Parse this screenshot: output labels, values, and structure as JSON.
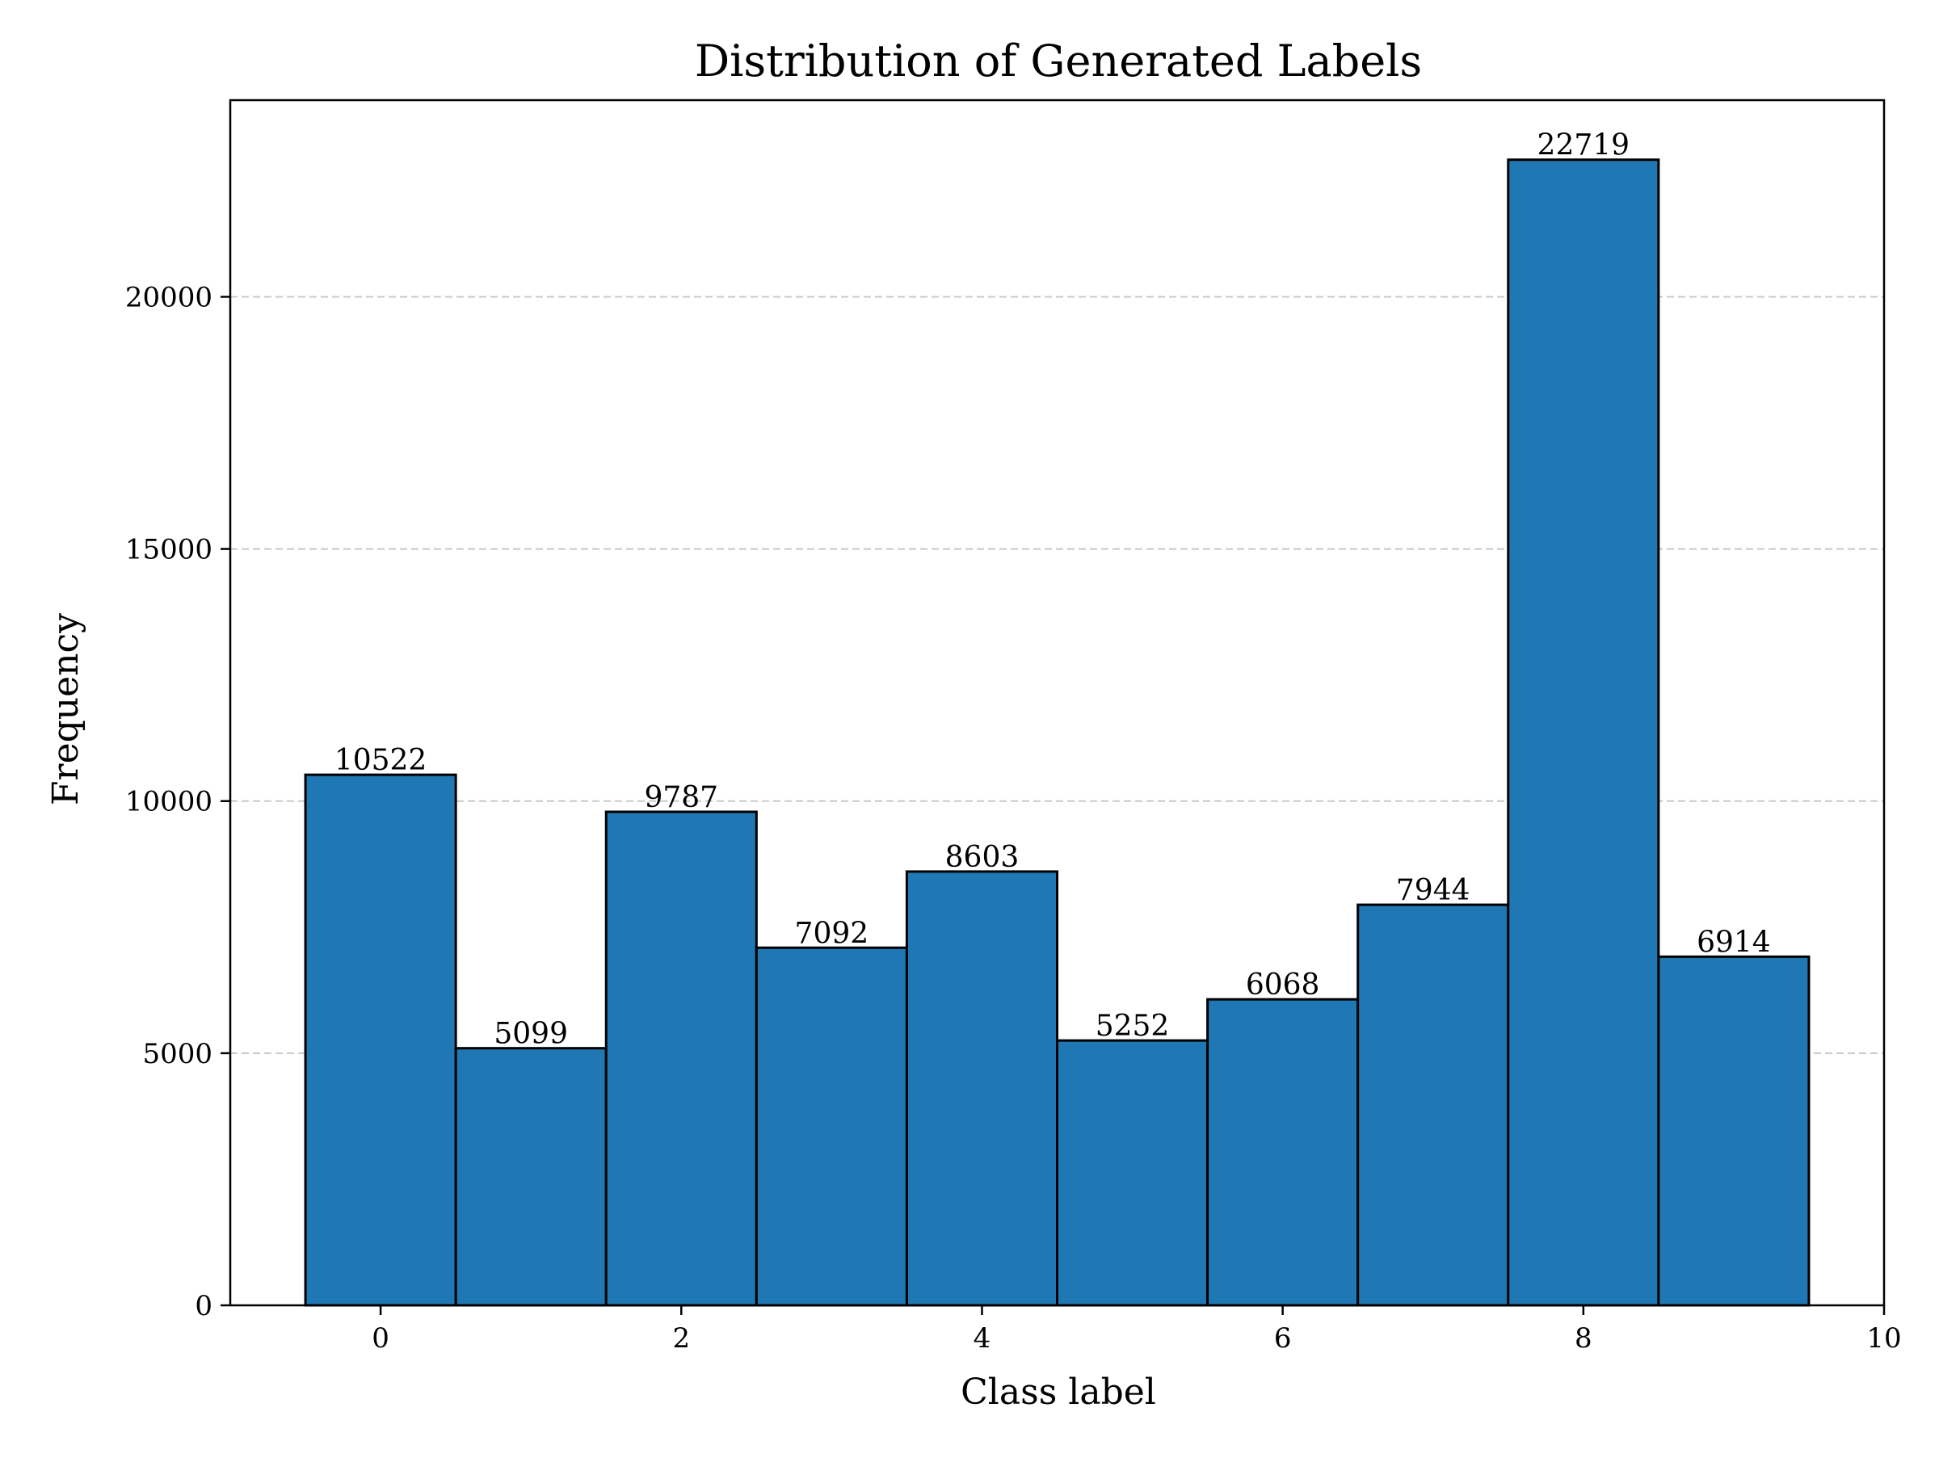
{
  "chart_data": {
    "type": "bar",
    "title": "Distribution of Generated Labels",
    "xlabel": "Class label",
    "ylabel": "Frequency",
    "categories": [
      0,
      1,
      2,
      3,
      4,
      5,
      6,
      7,
      8,
      9
    ],
    "values": [
      10522,
      5099,
      9787,
      7092,
      8603,
      5252,
      6068,
      7944,
      22719,
      6914
    ],
    "data_labels": [
      "10522",
      "5099",
      "9787",
      "7092",
      "8603",
      "5252",
      "6068",
      "7944",
      "22719",
      "6914"
    ],
    "xlim": [
      -1,
      10
    ],
    "ylim": [
      0,
      23900
    ],
    "x_ticks": [
      0,
      2,
      4,
      6,
      8,
      10
    ],
    "x_tick_labels": [
      "0",
      "2",
      "4",
      "6",
      "8",
      "10"
    ],
    "y_ticks": [
      0,
      5000,
      10000,
      15000,
      20000
    ],
    "y_tick_labels": [
      "0",
      "5000",
      "10000",
      "15000",
      "20000"
    ],
    "grid": "y-dashed",
    "bar_color": "#1f77b4",
    "edge_color": "#000000"
  }
}
